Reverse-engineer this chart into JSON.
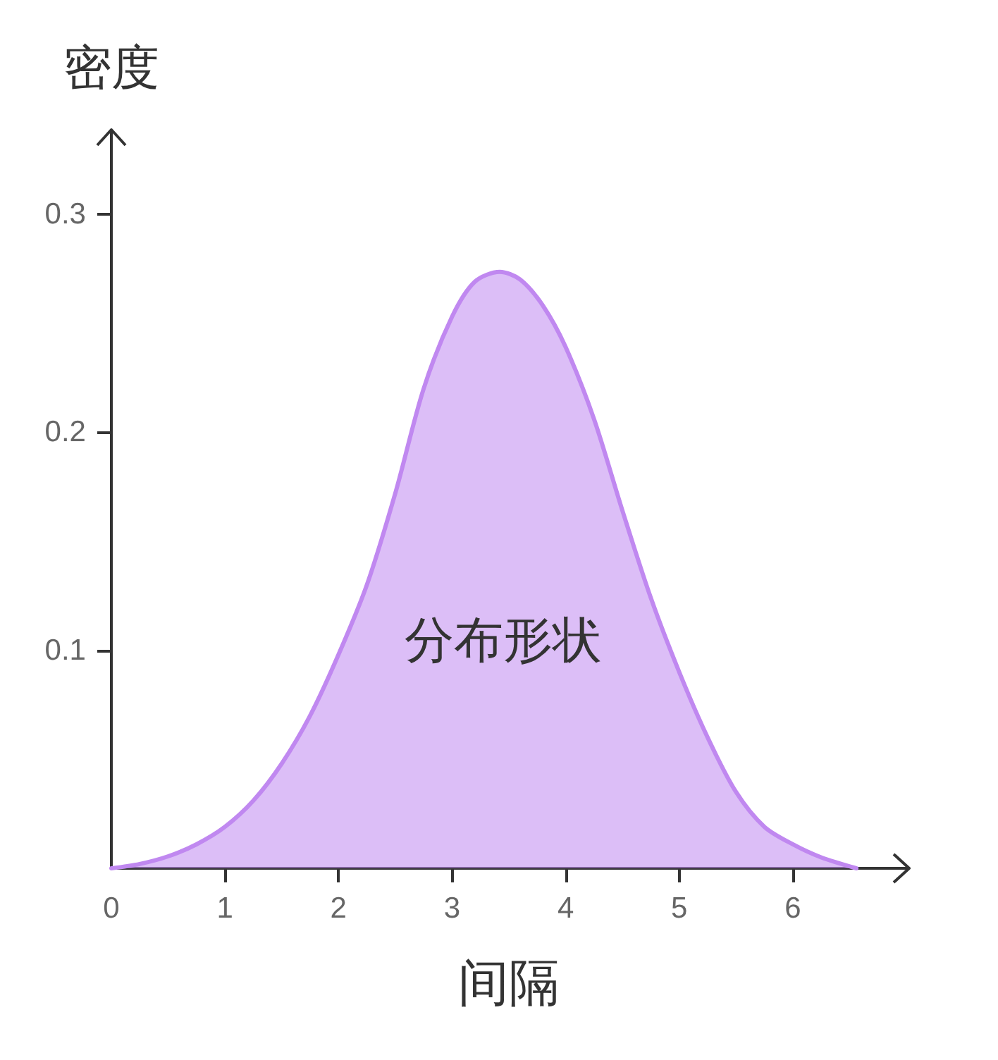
{
  "chart_data": {
    "type": "area",
    "xlabel": "间隔",
    "ylabel": "密度",
    "annotations": [
      "分布形状"
    ],
    "x": [
      0,
      0.25,
      0.5,
      0.75,
      1,
      1.25,
      1.5,
      1.75,
      2,
      2.25,
      2.5,
      2.75,
      3,
      3.2,
      3.42,
      3.6,
      3.8,
      4,
      4.25,
      4.5,
      4.75,
      5,
      5.25,
      5.5,
      5.75,
      6,
      6.25,
      6.56
    ],
    "series": [
      {
        "color": "#c088f0",
        "values": [
          0,
          0.002,
          0.0055,
          0.011,
          0.019,
          0.031,
          0.048,
          0.07,
          0.098,
          0.13,
          0.172,
          0.22,
          0.253,
          0.269,
          0.2735,
          0.27,
          0.258,
          0.239,
          0.206,
          0.164,
          0.124,
          0.09,
          0.06,
          0.035,
          0.019,
          0.011,
          0.005,
          0
        ]
      }
    ],
    "xlim": [
      0,
      7
    ],
    "ylim": [
      0,
      0.33
    ],
    "xticks": [
      0,
      1,
      2,
      3,
      4,
      5,
      6
    ],
    "yticks": [
      0.1,
      0.2,
      0.3
    ],
    "marker": "none",
    "line_style": "solid"
  }
}
